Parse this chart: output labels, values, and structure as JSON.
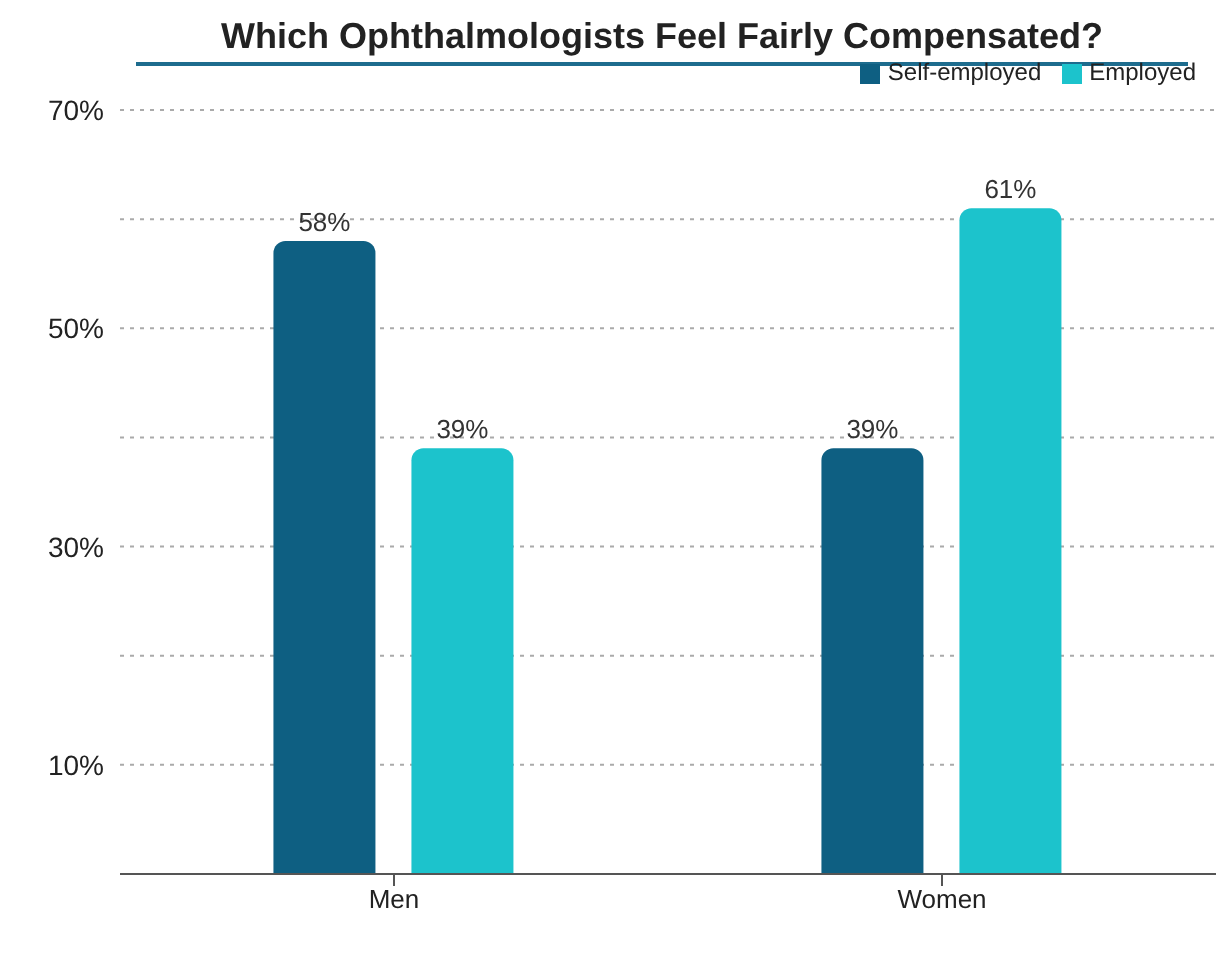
{
  "chart_data": {
    "type": "bar",
    "title": "Which Ophthalmologists Feel Fairly Compensated?",
    "categories": [
      "Men",
      "Women"
    ],
    "series": [
      {
        "name": "Self-employed",
        "color": "#0e5f82",
        "values": [
          58,
          39
        ],
        "value_labels": [
          "58%",
          "39%"
        ]
      },
      {
        "name": "Employed",
        "color": "#1cc3cc",
        "values": [
          39,
          61
        ],
        "value_labels": [
          "39%",
          "61%"
        ]
      }
    ],
    "ylim": [
      0,
      70
    ],
    "yticks": [
      {
        "value": 0,
        "label": null
      },
      {
        "value": 10,
        "label": "10%"
      },
      {
        "value": 20,
        "label": null
      },
      {
        "value": 30,
        "label": "30%"
      },
      {
        "value": 40,
        "label": null
      },
      {
        "value": 50,
        "label": "50%"
      },
      {
        "value": 60,
        "label": null
      },
      {
        "value": 70,
        "label": "70%"
      }
    ],
    "grid": "y",
    "legend": "top right"
  }
}
